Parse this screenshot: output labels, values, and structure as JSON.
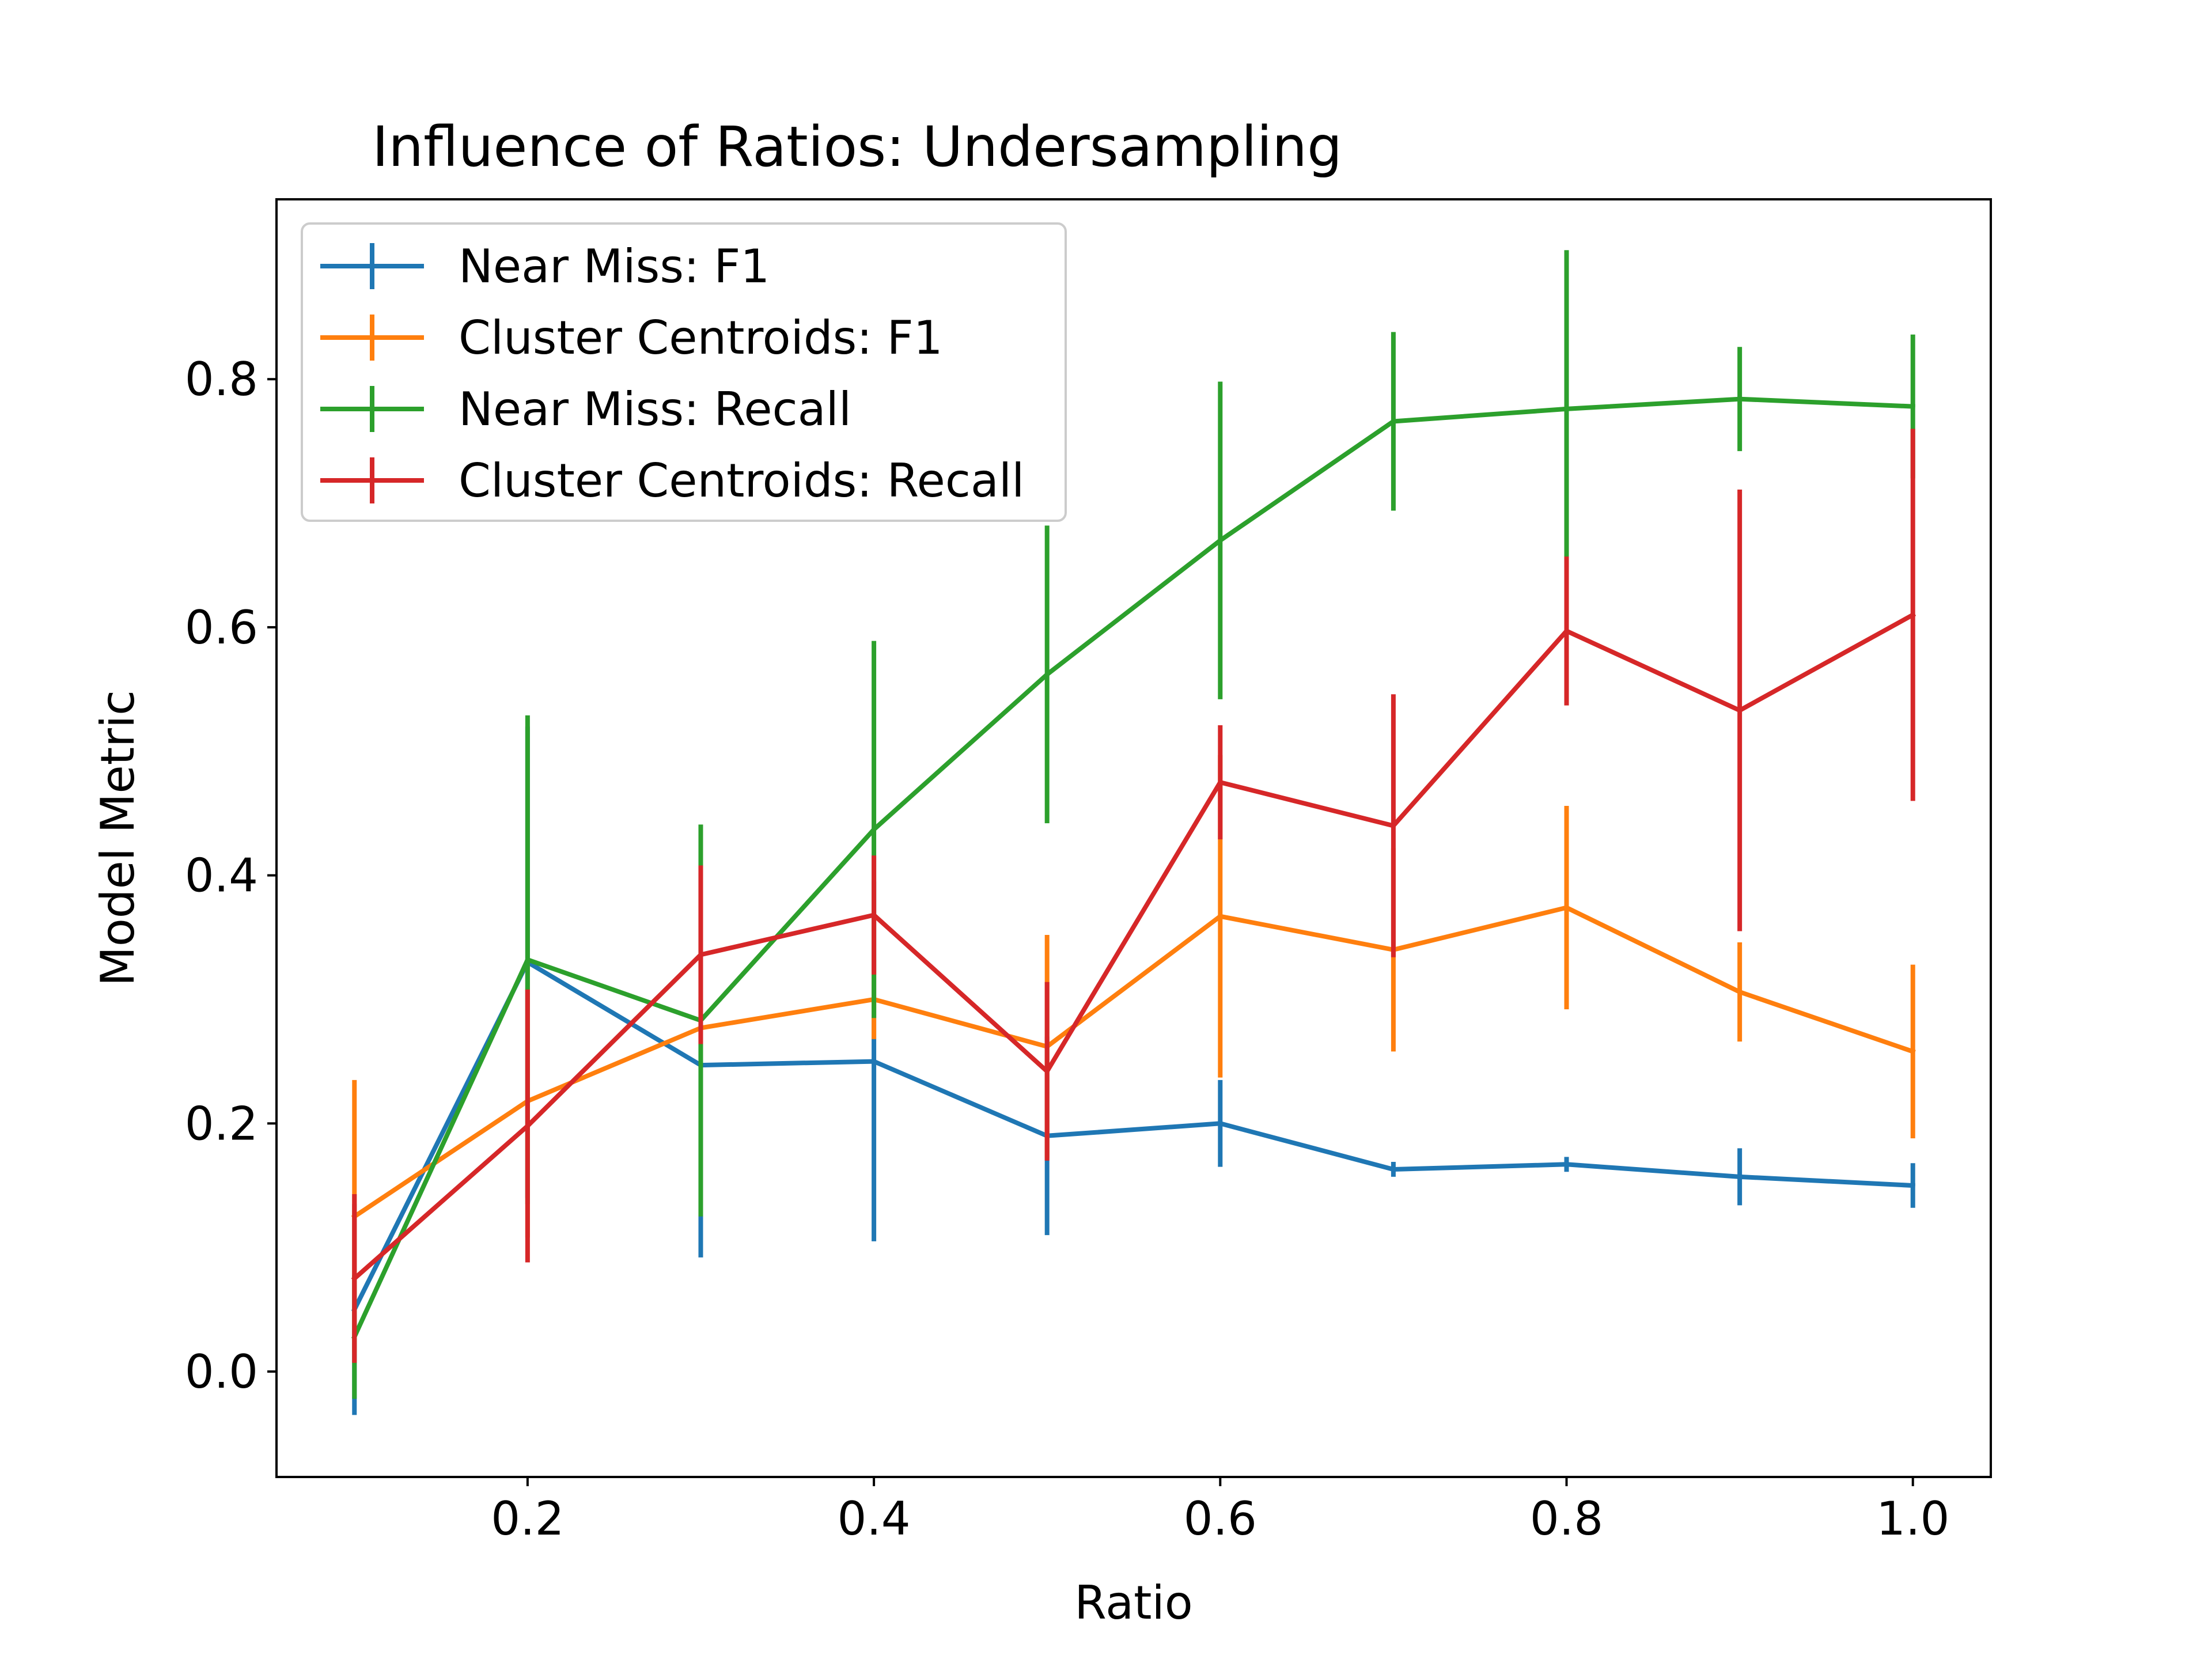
{
  "chart_data": {
    "type": "line",
    "title": "Influence of Ratios: Undersampling",
    "xlabel": "Ratio",
    "ylabel": "Model Metric",
    "xlim": [
      0.055,
      1.045
    ],
    "ylim": [
      -0.085,
      0.945
    ],
    "xticks": [
      0.2,
      0.4,
      0.6,
      0.8,
      1.0
    ],
    "xtick_labels": [
      "0.2",
      "0.4",
      "0.6",
      "0.8",
      "1.0"
    ],
    "yticks": [
      0.0,
      0.2,
      0.4,
      0.6,
      0.8
    ],
    "ytick_labels": [
      "0.0",
      "0.2",
      "0.4",
      "0.6",
      "0.8"
    ],
    "grid": false,
    "legend_position": "top-left",
    "x": [
      0.1,
      0.2,
      0.3,
      0.4,
      0.5,
      0.6,
      0.7,
      0.8,
      0.9,
      1.0
    ],
    "series": [
      {
        "name": "Near Miss: F1",
        "color": "#1f77b4",
        "values": [
          0.05,
          0.33,
          0.247,
          0.25,
          0.19,
          0.2,
          0.163,
          0.167,
          0.157,
          0.15
        ],
        "errors": [
          0.085,
          0.19,
          0.155,
          0.145,
          0.08,
          0.035,
          0.006,
          0.006,
          0.023,
          0.018
        ]
      },
      {
        "name": "Cluster Centroids: F1",
        "color": "#ff7f0e",
        "values": [
          0.125,
          0.218,
          0.277,
          0.3,
          0.262,
          0.367,
          0.34,
          0.374,
          0.306,
          0.258
        ],
        "errors": [
          0.11,
          0.11,
          0.025,
          0.032,
          0.09,
          0.13,
          0.082,
          0.082,
          0.04,
          0.07
        ]
      },
      {
        "name": "Near Miss: Recall",
        "color": "#2ca02c",
        "values": [
          0.028,
          0.332,
          0.283,
          0.437,
          0.562,
          0.67,
          0.766,
          0.776,
          0.784,
          0.778
        ],
        "errors": [
          0.05,
          0.197,
          0.158,
          0.152,
          0.12,
          0.128,
          0.072,
          0.128,
          0.042,
          0.058
        ]
      },
      {
        "name": "Cluster Centroids: Recall",
        "color": "#d62728",
        "values": [
          0.075,
          0.198,
          0.336,
          0.368,
          0.242,
          0.475,
          0.44,
          0.597,
          0.533,
          0.61
        ],
        "errors": [
          0.068,
          0.11,
          0.072,
          0.048,
          0.072,
          0.046,
          0.106,
          0.06,
          0.178,
          0.15
        ]
      }
    ]
  }
}
